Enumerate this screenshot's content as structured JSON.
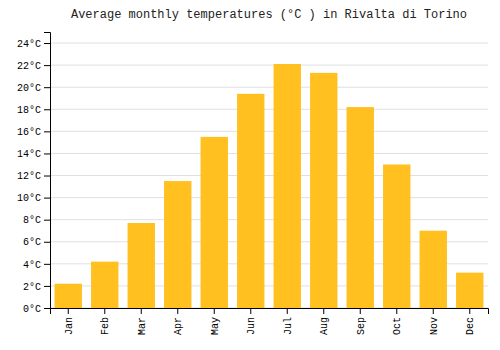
{
  "chart_data": {
    "type": "bar",
    "title": "Average monthly temperatures (°C ) in Rivalta di Torino",
    "categories": [
      "Jan",
      "Feb",
      "Mar",
      "Apr",
      "May",
      "Jun",
      "Jul",
      "Aug",
      "Sep",
      "Oct",
      "Nov",
      "Dec"
    ],
    "values": [
      2.2,
      4.2,
      7.7,
      11.5,
      15.5,
      19.4,
      22.1,
      21.3,
      18.2,
      13.0,
      7.0,
      3.2
    ],
    "color": "#FFC020",
    "ylim": [
      0,
      25
    ],
    "yticks": [
      {
        "value": 0,
        "label": "0°C"
      },
      {
        "value": 2,
        "label": "2°C"
      },
      {
        "value": 4,
        "label": "4°C"
      },
      {
        "value": 6,
        "label": "6°C"
      },
      {
        "value": 8,
        "label": "8°C"
      },
      {
        "value": 10,
        "label": "10°C"
      },
      {
        "value": 12,
        "label": "12°C"
      },
      {
        "value": 14,
        "label": "14°C"
      },
      {
        "value": 16,
        "label": "16°C"
      },
      {
        "value": 18,
        "label": "18°C"
      },
      {
        "value": 20,
        "label": "20°C"
      },
      {
        "value": 22,
        "label": "22°C"
      },
      {
        "value": 24,
        "label": "24°C"
      }
    ],
    "grid": true
  }
}
